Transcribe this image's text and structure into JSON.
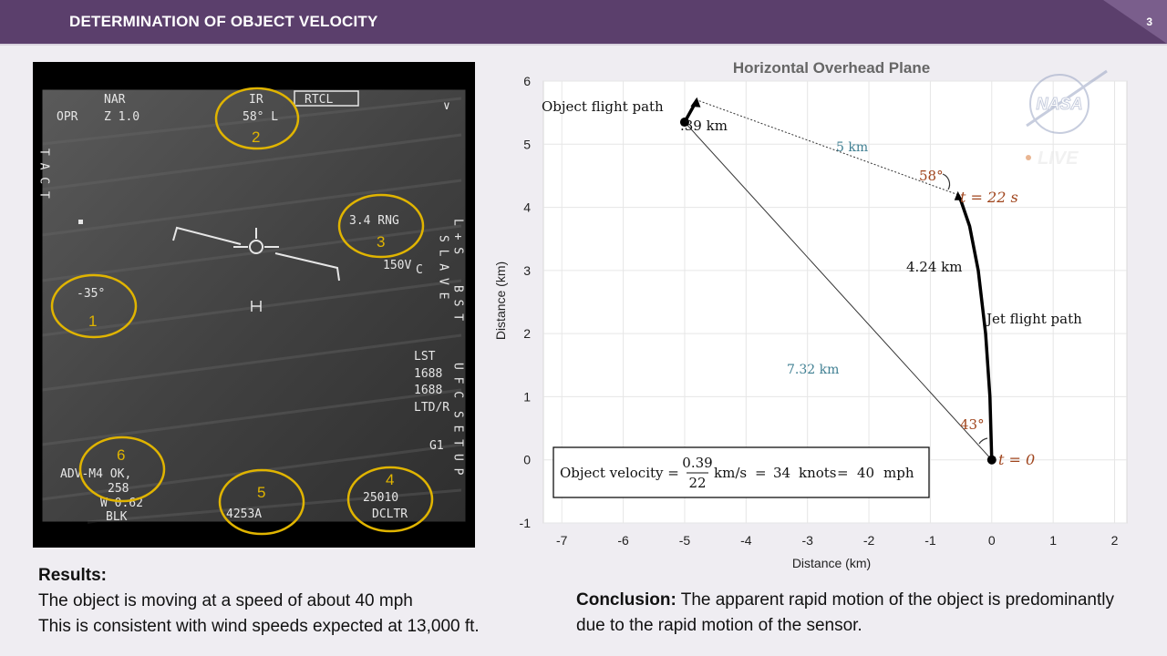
{
  "header": {
    "title": "DETERMINATION OF OBJECT VELOCITY",
    "page_number": "3",
    "accent_color": "#5b3f6c"
  },
  "ir_display": {
    "nar": "NAR",
    "opr": "OPR",
    "zoom": "Z 1.0",
    "ir": "IR",
    "az": "58° L",
    "rtcl": "RTCL",
    "tact": "T A C T",
    "chevron": "∨",
    "rng": "3.4 RNG",
    "spd": "150V",
    "spd_c": "C",
    "el": "-35°",
    "l_s": "L + S",
    "slave": "S L A V E",
    "bst": "B S T",
    "lst": "LST",
    "val1": "1688",
    "val2": "1688",
    "ltd": "LTD/R",
    "ufc": "U F C",
    "setup": "S E T U P",
    "g1": "G1",
    "adv1": "ADV-M4 OK,",
    "adv2": "258",
    "adv3": "W 0.62",
    "adv4": "BLK",
    "alt": "4253A",
    "clock": "25010",
    "dcltr": "DCLTR",
    "markers": [
      "1",
      "2",
      "3",
      "4",
      "5",
      "6"
    ],
    "marker_color": "#e0b400"
  },
  "chart_data": {
    "type": "line",
    "title": "Horizontal Overhead Plane",
    "xlabel": "Distance (km)",
    "ylabel": "Distance (km)",
    "xlim": [
      -7.3,
      2.2
    ],
    "ylim": [
      -1,
      6
    ],
    "xticks": [
      -7,
      -6,
      -5,
      -4,
      -3,
      -2,
      -1,
      0,
      1,
      2
    ],
    "yticks": [
      -1,
      0,
      1,
      2,
      3,
      4,
      5,
      6
    ],
    "grid": true,
    "series": [
      {
        "name": "Jet flight path",
        "x": [
          0,
          -0.03,
          -0.1,
          -0.22,
          -0.36,
          -0.5,
          -0.55
        ],
        "y": [
          0,
          1.0,
          2.0,
          3.0,
          3.7,
          4.1,
          4.2
        ]
      },
      {
        "name": "Object flight path",
        "x": [
          -5,
          -4.8
        ],
        "y": [
          5.35,
          5.7
        ]
      }
    ],
    "sight_lines": [
      {
        "from": [
          0,
          0
        ],
        "to": [
          -5,
          5.35
        ],
        "label": "7.32 km"
      },
      {
        "from": [
          -0.55,
          4.2
        ],
        "to": [
          -4.8,
          5.7
        ],
        "label": "5 km"
      }
    ],
    "annotations": {
      "jet_arc": "4.24 km",
      "object_seg": ".39 km",
      "angle_start": "43°",
      "angle_end": "58°",
      "t0": "t = 0",
      "t22": "t = 22 s"
    },
    "formula": {
      "prefix": "Object velocity =",
      "num": "0.39",
      "den": "22",
      "unit": "km/s",
      "eq1": "=",
      "knots_val": "34",
      "knots": "knots",
      "eq2": "=",
      "mph_val": "40",
      "mph": "mph"
    },
    "watermark": {
      "logo": "NASA",
      "live": "LIVE"
    }
  },
  "results": {
    "heading": "Results:",
    "line1": "The object is moving at a speed of about 40 mph",
    "line2": "This is consistent with wind speeds expected at 13,000 ft."
  },
  "conclusion": {
    "heading": "Conclusion:",
    "text": "The apparent rapid motion of the object is predominantly due to the rapid motion of the sensor."
  }
}
